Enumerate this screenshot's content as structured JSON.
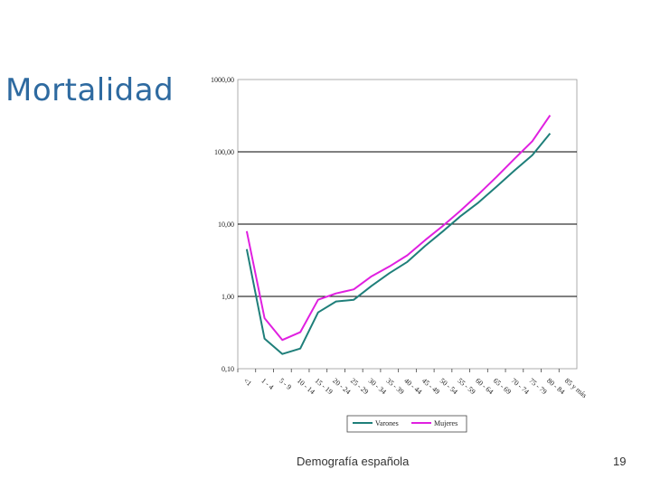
{
  "slide": {
    "title": "Mortalidad",
    "footer": "Demografía española",
    "page_number": "19"
  },
  "colors": {
    "title": "#2e6aa0",
    "series_varones": "#1f7f7a",
    "series_mujeres": "#e020e0",
    "gridline": "#000000"
  },
  "chart_data": {
    "type": "line",
    "title": "",
    "xlabel": "",
    "ylabel": "",
    "yscale": "log",
    "ylim": [
      0.1,
      1000
    ],
    "yticks": [
      "0,10",
      "1,00",
      "10,00",
      "100,00",
      "1000,00"
    ],
    "categories": [
      "<1",
      "1 - 4",
      "5 - 9",
      "10 - 14",
      "15 - 19",
      "20 - 24",
      "25 - 29",
      "30 - 34",
      "35 - 39",
      "40 - 44",
      "45 - 49",
      "50 - 54",
      "55 - 59",
      "60 - 64",
      "65 - 69",
      "70 - 74",
      "75 - 79",
      "80 - 84",
      "85 y más"
    ],
    "series": [
      {
        "name": "Varones",
        "values": [
          4.5,
          0.26,
          0.16,
          0.19,
          0.6,
          0.85,
          0.9,
          1.4,
          2.1,
          3.0,
          5.0,
          8.0,
          13,
          20,
          33,
          55,
          90,
          180,
          null
        ]
      },
      {
        "name": "Mujeres",
        "values": [
          8,
          0.5,
          0.25,
          0.32,
          0.9,
          1.1,
          1.25,
          1.9,
          2.6,
          3.7,
          6.0,
          9.5,
          15.5,
          26,
          45,
          80,
          140,
          320,
          null
        ]
      }
    ],
    "grid": true,
    "legend_position": "bottom"
  }
}
